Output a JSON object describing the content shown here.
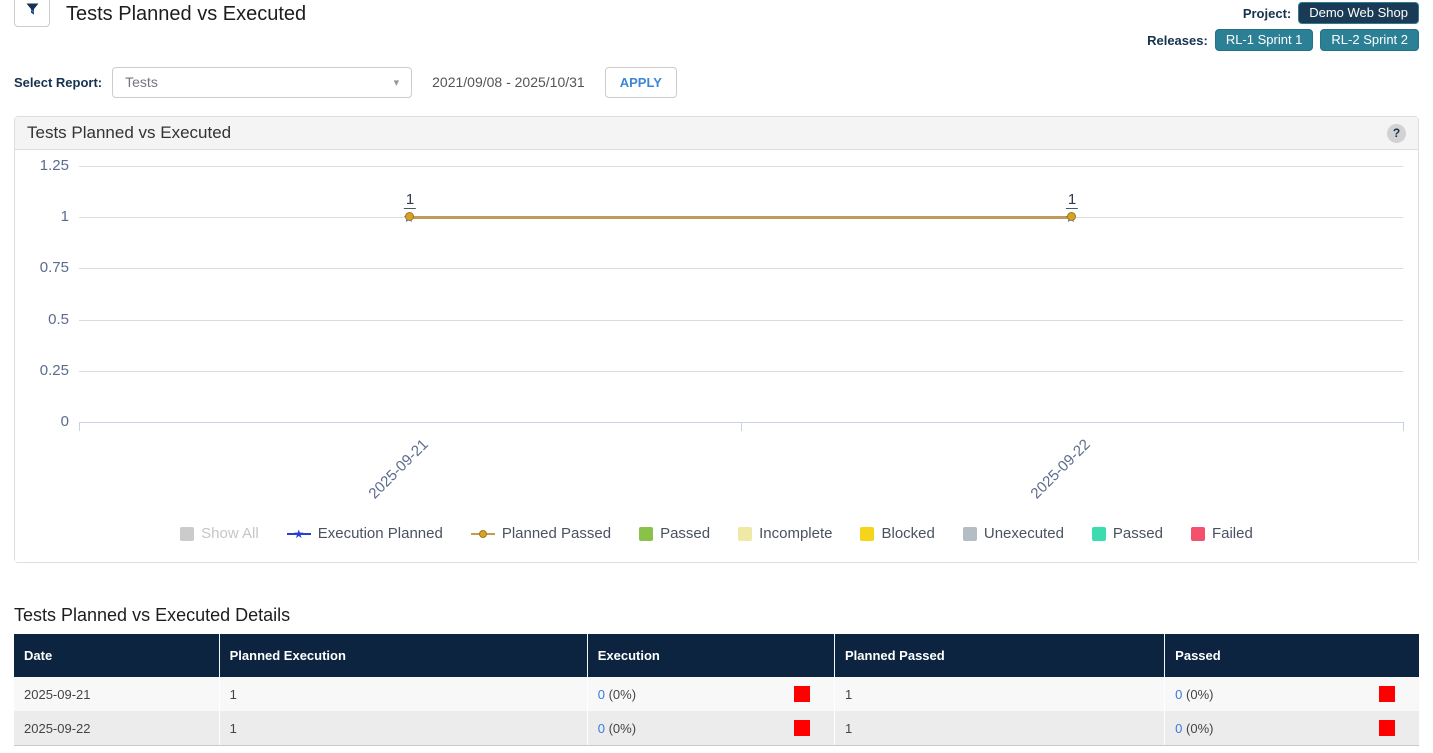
{
  "page": {
    "title": "Tests Planned vs Executed",
    "project_label": "Project:",
    "project_badge": "Demo Web Shop",
    "releases_label": "Releases:",
    "release_badges": [
      "RL-1 Sprint 1",
      "RL-2 Sprint 2"
    ]
  },
  "controls": {
    "select_report_label": "Select Report:",
    "report_dropdown_value": "Tests",
    "dropdown_caret": "▾",
    "date_range": "2021/09/08 - 2025/10/31",
    "apply_label": "APPLY"
  },
  "chart_panel": {
    "title": "Tests Planned vs Executed",
    "help_icon": "?"
  },
  "chart_data": {
    "type": "line",
    "categories": [
      "2025-09-21",
      "2025-09-22"
    ],
    "series": [
      {
        "name": "Execution Planned",
        "values": [
          1,
          1
        ],
        "color": "#2a3fd4",
        "marker": "star"
      },
      {
        "name": "Planned Passed",
        "values": [
          1,
          1
        ],
        "color": "#bf9a5d",
        "marker": "circle",
        "marker_fill": "#d6a324",
        "marker_border": "#9c7a1e"
      }
    ],
    "point_labels": [
      "1",
      "1"
    ],
    "yticks": [
      0,
      0.25,
      0.5,
      0.75,
      1,
      1.25
    ],
    "ylim": [
      0,
      1.25
    ],
    "grid": true,
    "legend_position": "bottom",
    "legend": [
      {
        "label": "Show All",
        "swatch": "square",
        "color": "#cbcbcb",
        "muted": true
      },
      {
        "label": "Execution Planned",
        "swatch": "line-star",
        "color": "#2a3fd4"
      },
      {
        "label": "Planned Passed",
        "swatch": "line-circle",
        "color": "#c89c4e",
        "dot_fill": "#d6a324",
        "dot_border": "#9c7a1e"
      },
      {
        "label": "Passed",
        "swatch": "square",
        "color": "#8ac249"
      },
      {
        "label": "Incomplete",
        "swatch": "square",
        "color": "#f0e9a5"
      },
      {
        "label": "Blocked",
        "swatch": "square",
        "color": "#f7d41c"
      },
      {
        "label": "Unexecuted",
        "swatch": "square",
        "color": "#b4bcc4"
      },
      {
        "label": "Passed",
        "swatch": "square",
        "color": "#3cdcb0"
      },
      {
        "label": "Failed",
        "swatch": "square",
        "color": "#f4516c"
      }
    ]
  },
  "details": {
    "title": "Tests Planned vs Executed Details",
    "columns": [
      "Date",
      "Planned Execution",
      "Execution",
      "Planned Passed",
      "Passed"
    ],
    "status_color": "#ff0000",
    "rows": [
      {
        "date": "2025-09-21",
        "planned_execution": "1",
        "execution": {
          "count": "0",
          "percent": "(0%)"
        },
        "planned_passed": "1",
        "passed": {
          "count": "0",
          "percent": "(0%)"
        }
      },
      {
        "date": "2025-09-22",
        "planned_execution": "1",
        "execution": {
          "count": "0",
          "percent": "(0%)"
        },
        "planned_passed": "1",
        "passed": {
          "count": "0",
          "percent": "(0%)"
        }
      }
    ]
  }
}
